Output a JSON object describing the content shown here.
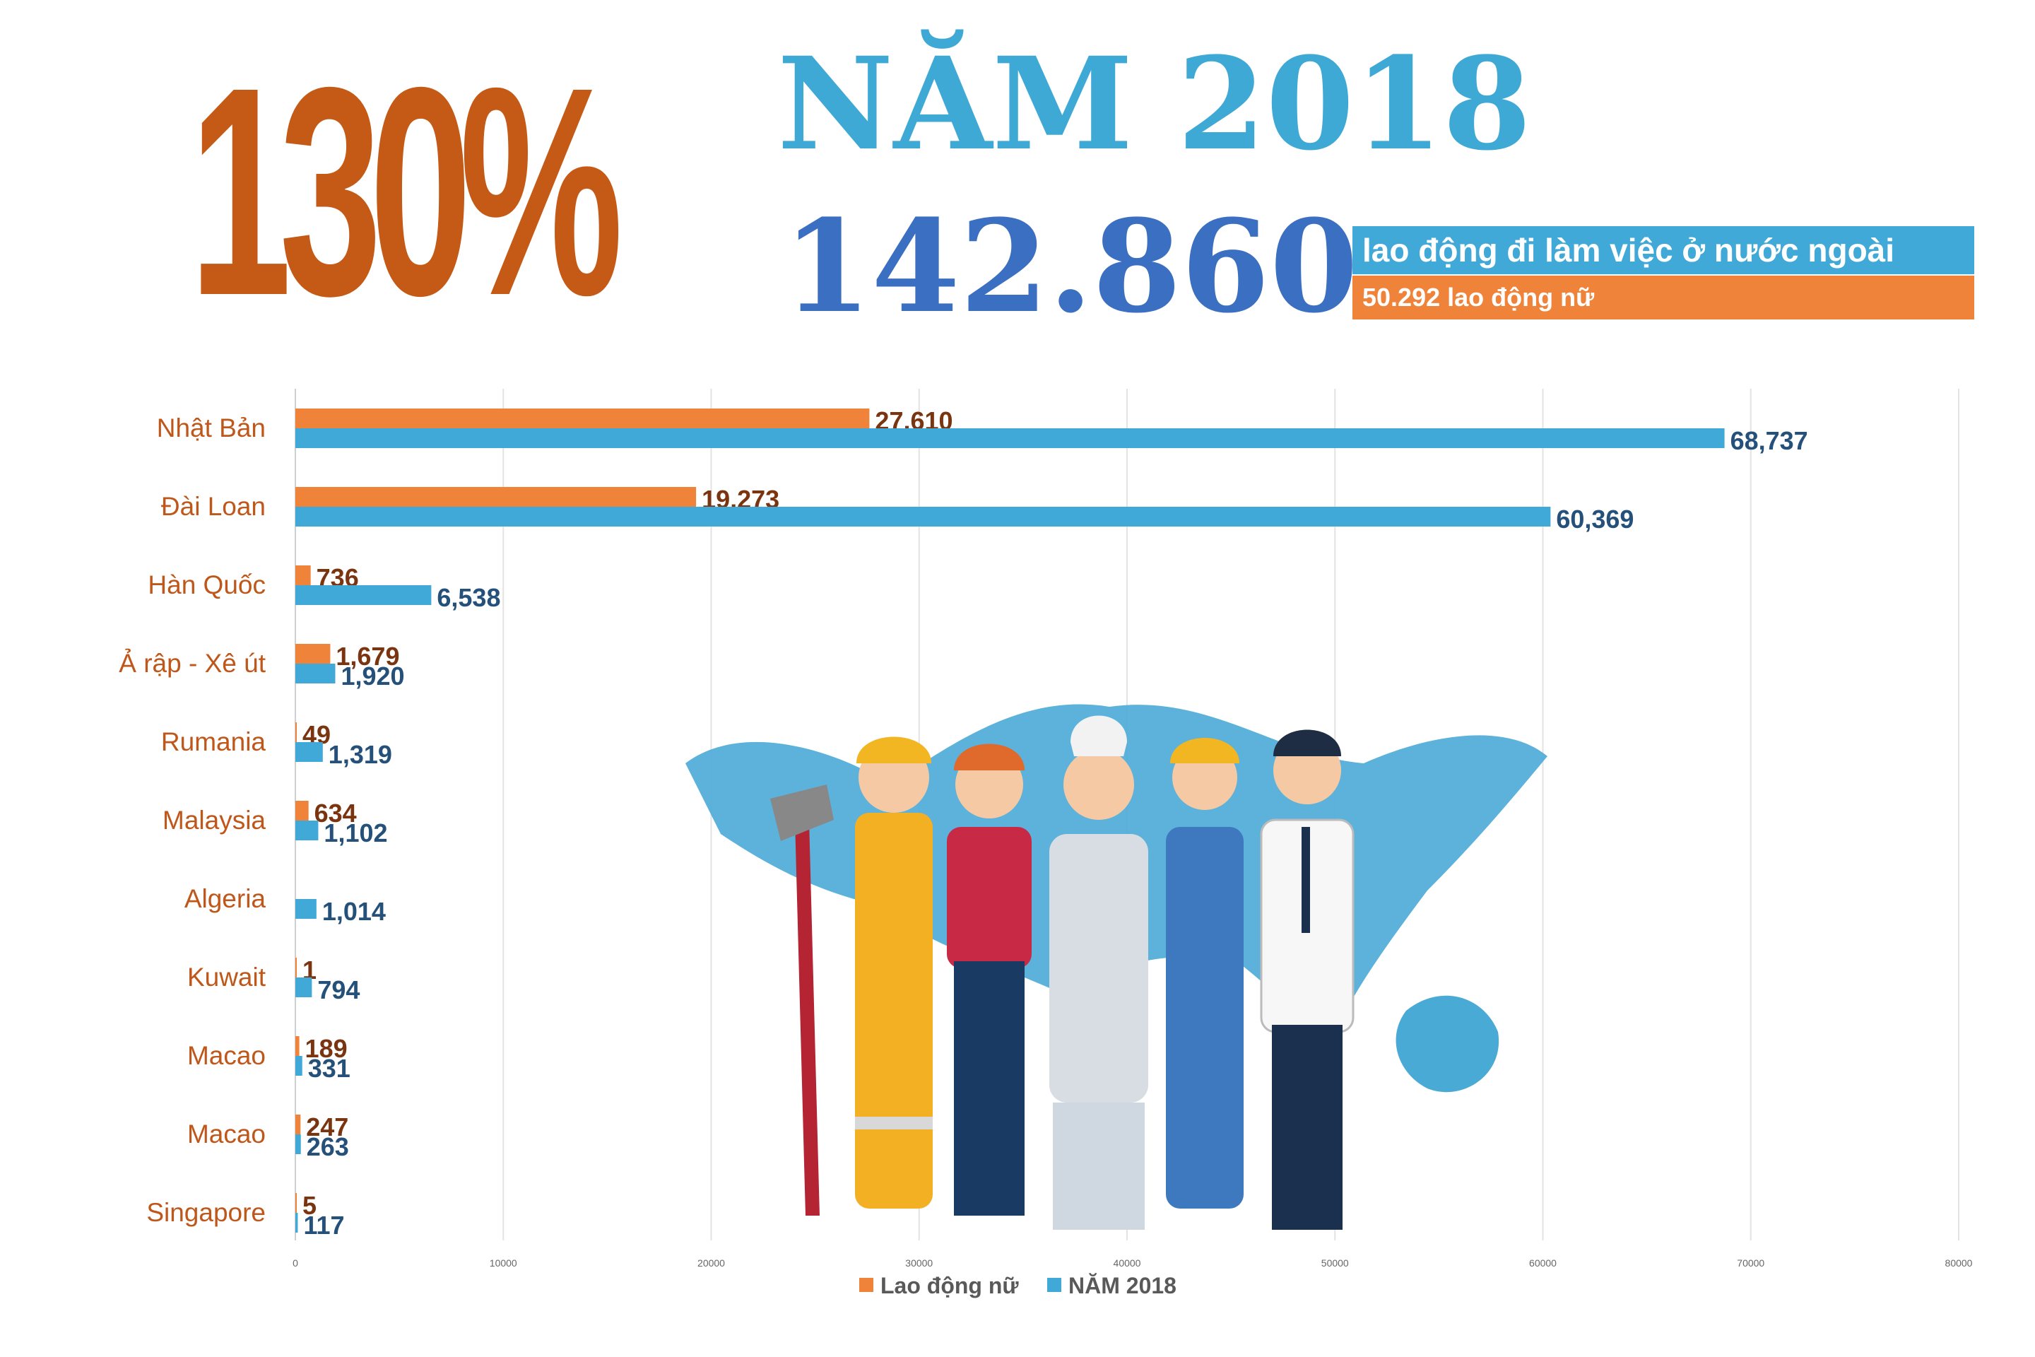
{
  "header": {
    "percent": "130%",
    "year_title": "NĂM 2018",
    "total_workers": "142.860",
    "total_caption": "lao động đi làm việc ở nước ngoài",
    "female_caption": "50.292 lao động nữ"
  },
  "colors": {
    "female": "#ee8339",
    "year2018": "#41a9d7",
    "percent": "#c45a16",
    "year_title": "#3fa9d6",
    "total": "#3b6fc2"
  },
  "chart_data": {
    "type": "bar",
    "orientation": "horizontal",
    "categories": [
      "Nhật Bản",
      "Đài Loan",
      "Hàn Quốc",
      "Ả rập - Xê út",
      "Rumania",
      "Malaysia",
      "Algeria",
      "Kuwait",
      "Macao",
      "Macao",
      "Singapore"
    ],
    "series": [
      {
        "name": "Lao động nữ",
        "values": [
          27610,
          19273,
          736,
          1679,
          49,
          634,
          null,
          1,
          189,
          247,
          5
        ],
        "labels": [
          "27,610",
          "19,273",
          "736",
          "1,679",
          "49",
          "634",
          "",
          "1",
          "189",
          "247",
          "5"
        ]
      },
      {
        "name": "NĂM 2018",
        "values": [
          68737,
          60369,
          6538,
          1920,
          1319,
          1102,
          1014,
          794,
          331,
          263,
          117
        ],
        "labels": [
          "68,737",
          "60,369",
          "6,538",
          "1,920",
          "1,319",
          "1,102",
          "1,014",
          "794",
          "331",
          "263",
          "117"
        ]
      }
    ],
    "xlim": [
      0,
      80000
    ],
    "x_ticks": [
      "0",
      "10000",
      "20000",
      "30000",
      "40000",
      "50000",
      "60000",
      "70000",
      "80000"
    ],
    "grid": true,
    "legend": "bottom"
  }
}
